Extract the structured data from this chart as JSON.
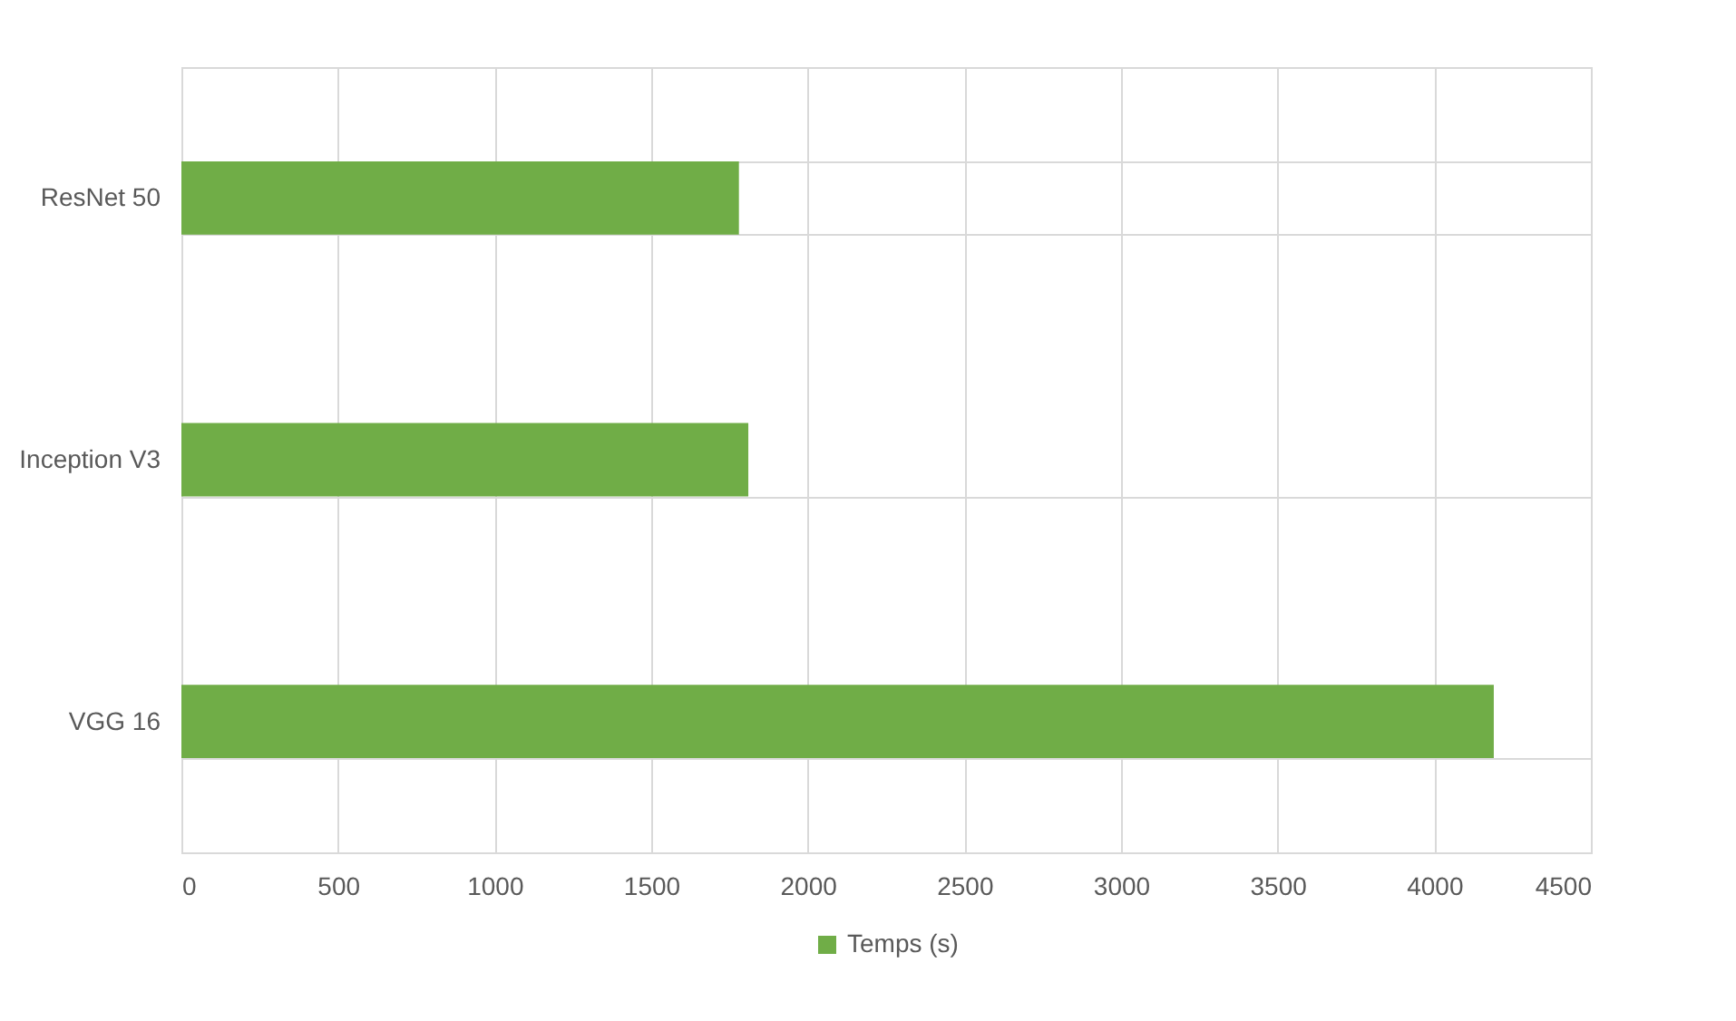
{
  "chart_data": {
    "type": "bar",
    "orientation": "horizontal",
    "categories": [
      "ResNet 50",
      "Inception V3",
      "VGG 16"
    ],
    "series": [
      {
        "name": "Temps (s)",
        "color": "#70ad47",
        "values": [
          1780,
          1810,
          4190
        ]
      }
    ],
    "xlim": [
      0,
      4500
    ],
    "xticks": [
      0,
      500,
      1000,
      1500,
      2000,
      2500,
      3000,
      3500,
      4000,
      4500
    ],
    "grid": true,
    "legend": "bottom"
  }
}
